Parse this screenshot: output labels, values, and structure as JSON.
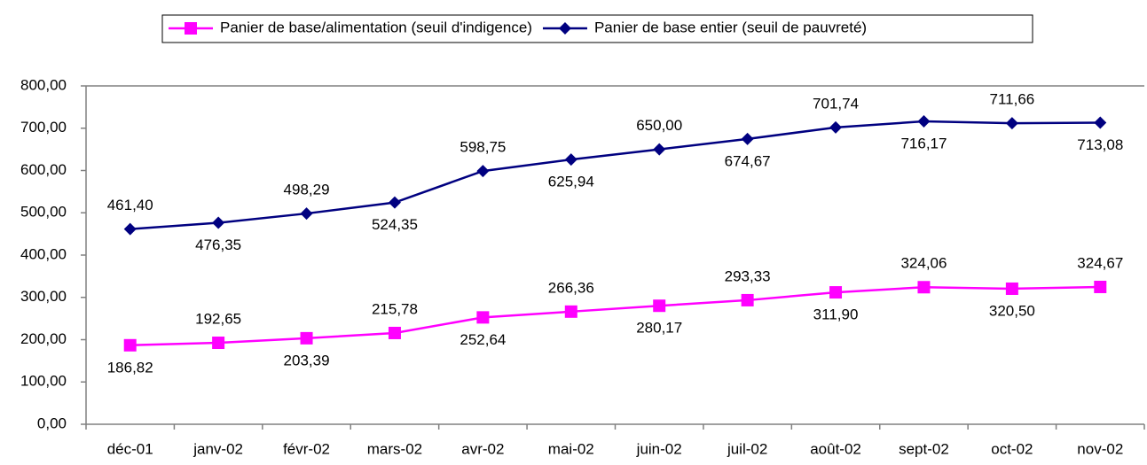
{
  "chart_data": {
    "type": "line",
    "categories": [
      "déc-01",
      "janv-02",
      "févr-02",
      "mars-02",
      "avr-02",
      "mai-02",
      "juin-02",
      "juil-02",
      "août-02",
      "sept-02",
      "oct-02",
      "nov-02"
    ],
    "series": [
      {
        "name": "Panier de base/alimentation (seuil d'indigence)",
        "color": "#ff00ff",
        "marker": "square",
        "values": [
          186.82,
          192.65,
          203.39,
          215.78,
          252.64,
          266.36,
          280.17,
          293.33,
          311.9,
          324.06,
          320.5,
          324.67
        ],
        "value_labels": [
          "186,82",
          "192,65",
          "203,39",
          "215,78",
          "252,64",
          "266,36",
          "280,17",
          "293,33",
          "311,90",
          "324,06",
          "320,50",
          "324,67"
        ]
      },
      {
        "name": "Panier de base entier (seuil de pauvreté)",
        "color": "#000080",
        "marker": "diamond",
        "values": [
          461.4,
          476.35,
          498.29,
          524.35,
          598.75,
          625.94,
          650.0,
          674.67,
          701.74,
          716.17,
          711.66,
          713.08
        ],
        "value_labels": [
          "461,40",
          "476,35",
          "498,29",
          "524,35",
          "598,75",
          "625,94",
          "650,00",
          "674,67",
          "701,74",
          "716,17",
          "711,66",
          "713,08"
        ]
      }
    ],
    "ylim": [
      0,
      800
    ],
    "yticks": [
      {
        "value": 0,
        "label": "0,00"
      },
      {
        "value": 100,
        "label": "100,00"
      },
      {
        "value": 200,
        "label": "200,00"
      },
      {
        "value": 300,
        "label": "300,00"
      },
      {
        "value": 400,
        "label": "400,00"
      },
      {
        "value": 500,
        "label": "500,00"
      },
      {
        "value": 600,
        "label": "600,00"
      },
      {
        "value": 700,
        "label": "700,00"
      },
      {
        "value": 800,
        "label": "800,00"
      }
    ],
    "grid": false,
    "legend": "top"
  }
}
